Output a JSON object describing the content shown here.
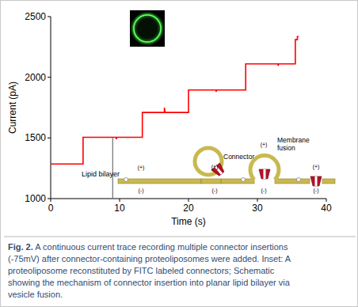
{
  "chart_data": {
    "type": "line",
    "x_label": "Time (s)",
    "y_label": "Current (pA)",
    "x": [
      0,
      4.7,
      4.7,
      9.5,
      9.5,
      9.6,
      13.3,
      13.3,
      16.5,
      16.5,
      16.6,
      20,
      20,
      24,
      24,
      24.1,
      28.3,
      28.3,
      33,
      33,
      33.1,
      35.5,
      35.5,
      35.8,
      35.8,
      36
    ],
    "values": [
      1285,
      1285,
      1505,
      1505,
      1490,
      1505,
      1505,
      1710,
      1710,
      1750,
      1710,
      1710,
      1895,
      1895,
      1880,
      1895,
      1895,
      2110,
      2110,
      2095,
      2110,
      2110,
      2310,
      2310,
      2335,
      2335
    ],
    "color": "#ff0000",
    "line_style": "solid",
    "grid": false,
    "xlim": [
      0,
      40
    ],
    "xticks": [
      0,
      10,
      20,
      30,
      40
    ],
    "ylim": [
      1000,
      2500
    ],
    "yticks": [
      1000,
      1500,
      2000,
      2500
    ],
    "event_marker": {
      "x": 9,
      "y": [
        1000,
        1500
      ]
    }
  },
  "inset": {
    "bilayer_label": "Lipid bilayer",
    "connector_label": "Connector",
    "fusion_label": "Membrane fusion",
    "stages": [
      {
        "top": "(+)",
        "bottom": "(-)"
      },
      {
        "top": "(+)",
        "bottom": "(-)"
      },
      {
        "top": "(+)",
        "bottom": "(-)"
      },
      {
        "top": "(+)",
        "bottom": "(-)"
      }
    ]
  },
  "caption": {
    "label": "Fig. 2.",
    "text": "A continuous current trace recording multiple connector insertions (-75mV) after connector-containing proteoliposomes were added. Inset: A proteoliposome reconstituted by FITC labeled connectors; Schematic showing the mechanism of connector insertion into planar lipid bilayer via vesicle fusion."
  }
}
